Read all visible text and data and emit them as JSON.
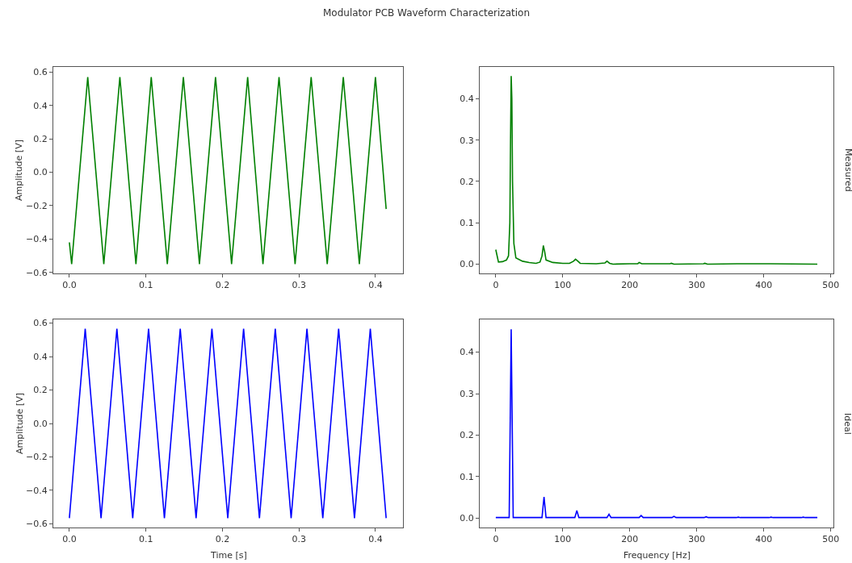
{
  "chart_data": [
    {
      "type": "line",
      "title": "Modulator PCB Waveform Characterization",
      "ylabel": "Amplitude [V]",
      "marker": "none",
      "line_style": "solid",
      "xlim": [
        -0.021,
        0.436
      ],
      "ylim": [
        -0.606,
        0.631
      ],
      "xticks": [
        {
          "value": 0,
          "label": "0.0"
        },
        0.1,
        0.2,
        0.3,
        0.4
      ],
      "yticks": [
        {
          "value": -0.6,
          "label": "−0.6"
        },
        {
          "value": -0.4,
          "label": "−0.4"
        },
        {
          "value": -0.2,
          "label": "−0.2"
        },
        {
          "value": 0,
          "label": "0.0"
        },
        0.2,
        0.4,
        0.6
      ],
      "tick_labels": "xy",
      "series": [
        {
          "color": "#008000",
          "x": [
            0,
            0.003,
            0.024,
            0.045,
            0.066,
            0.087,
            0.107,
            0.128,
            0.149,
            0.17,
            0.191,
            0.212,
            0.233,
            0.253,
            0.274,
            0.295,
            0.316,
            0.337,
            0.358,
            0.379,
            0.4,
            0.414
          ],
          "values": [
            -0.42,
            -0.55,
            0.57,
            -0.55,
            0.57,
            -0.55,
            0.57,
            -0.55,
            0.57,
            -0.55,
            0.57,
            -0.55,
            0.57,
            -0.55,
            0.57,
            -0.55,
            0.57,
            -0.55,
            0.57,
            -0.55,
            0.57,
            -0.22
          ]
        }
      ]
    },
    {
      "type": "line",
      "ylabel": "Measured",
      "marker": "none",
      "line_style": "solid",
      "xlim": [
        -24,
        504
      ],
      "ylim": [
        -0.0225,
        0.477
      ],
      "xticks": [
        0,
        100,
        200,
        300,
        400,
        500
      ],
      "yticks": [
        {
          "value": 0,
          "label": "0.0"
        },
        0.1,
        0.2,
        0.3,
        0.4
      ],
      "series": [
        {
          "color": "#008000",
          "x": [
            0,
            2,
            4,
            10,
            16,
            19,
            21,
            22,
            23,
            24,
            25,
            27,
            30,
            40,
            50,
            60,
            66,
            69,
            71,
            73,
            75,
            85,
            100,
            110,
            116,
            119,
            122,
            126,
            150,
            163,
            166,
            170,
            175,
            200,
            212,
            214,
            218,
            260,
            262,
            266,
            310,
            312,
            316,
            360,
            410,
            480
          ],
          "values": [
            0.035,
            0.02,
            0.005,
            0.006,
            0.01,
            0.02,
            0.1,
            0.3,
            0.455,
            0.4,
            0.2,
            0.05,
            0.015,
            0.007,
            0.004,
            0.002,
            0.005,
            0.02,
            0.045,
            0.03,
            0.01,
            0.004,
            0.002,
            0.002,
            0.007,
            0.012,
            0.008,
            0.002,
            0.001,
            0.003,
            0.007,
            0.002,
            0.0,
            0.001,
            0.001,
            0.004,
            0.001,
            0.001,
            0.002,
            0.0,
            0.001,
            0.002,
            0.0,
            0.001,
            0.001,
            0.0
          ]
        }
      ]
    },
    {
      "type": "line",
      "xlabel": "Time [s]",
      "ylabel": "Amplitude [V]",
      "marker": "none",
      "line_style": "solid",
      "xlim": [
        -0.021,
        0.436
      ],
      "ylim": [
        -0.622,
        0.622
      ],
      "xticks": [
        {
          "value": 0,
          "label": "0.0"
        },
        0.1,
        0.2,
        0.3,
        0.4
      ],
      "yticks": [
        {
          "value": -0.6,
          "label": "−0.6"
        },
        {
          "value": -0.4,
          "label": "−0.4"
        },
        {
          "value": -0.2,
          "label": "−0.2"
        },
        {
          "value": 0,
          "label": "0.0"
        },
        0.2,
        0.4,
        0.6
      ],
      "series": [
        {
          "color": "#0000ff",
          "x": [
            0,
            0.0207,
            0.0414,
            0.0621,
            0.0828,
            0.1035,
            0.1242,
            0.1449,
            0.1656,
            0.1863,
            0.207,
            0.2277,
            0.2484,
            0.2691,
            0.2898,
            0.3105,
            0.3312,
            0.3519,
            0.3726,
            0.3933,
            0.414
          ],
          "values": [
            -0.566,
            0.566,
            -0.566,
            0.566,
            -0.566,
            0.566,
            -0.566,
            0.566,
            -0.566,
            0.566,
            -0.566,
            0.566,
            -0.566,
            0.566,
            -0.566,
            0.566,
            -0.566,
            0.566,
            -0.566,
            0.566,
            -0.566
          ]
        }
      ]
    },
    {
      "type": "line",
      "xlabel": "Frequency [Hz]",
      "ylabel": "Ideal",
      "marker": "none",
      "line_style": "solid",
      "xlim": [
        -24,
        504
      ],
      "ylim": [
        -0.023,
        0.479
      ],
      "xticks": [
        0,
        100,
        200,
        300,
        400,
        500
      ],
      "yticks": [
        {
          "value": 0,
          "label": "0.0"
        },
        0.1,
        0.2,
        0.3,
        0.4
      ],
      "series": [
        {
          "color": "#0000ff",
          "x": [
            0,
            20,
            23,
            26,
            69,
            72,
            75,
            118,
            121,
            124,
            166,
            169,
            172,
            214,
            217,
            220,
            263,
            266,
            269,
            311,
            314,
            317,
            359,
            362,
            365,
            408,
            411,
            414,
            456,
            459,
            462,
            480
          ],
          "values": [
            0.001,
            0.001,
            0.455,
            0.001,
            0.001,
            0.051,
            0.001,
            0.001,
            0.018,
            0.001,
            0.001,
            0.009,
            0.001,
            0.001,
            0.006,
            0.001,
            0.001,
            0.004,
            0.001,
            0.001,
            0.003,
            0.001,
            0.001,
            0.002,
            0.001,
            0.001,
            0.002,
            0.001,
            0.001,
            0.002,
            0.001,
            0.001
          ]
        }
      ]
    }
  ]
}
